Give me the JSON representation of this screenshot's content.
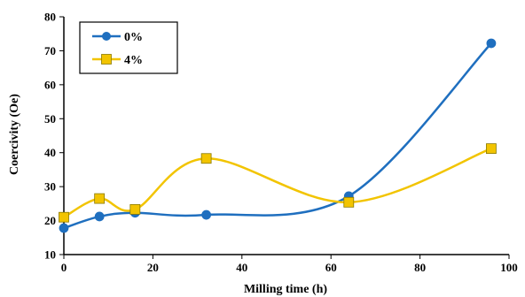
{
  "chart_data": {
    "type": "scatter",
    "xlabel": "Milling time (h)",
    "ylabel": "Coercivity (Oe)",
    "xlim": [
      0,
      100
    ],
    "ylim": [
      10,
      80
    ],
    "x_ticks": [
      0,
      20,
      40,
      60,
      80,
      100
    ],
    "y_ticks": [
      10,
      20,
      30,
      40,
      50,
      60,
      70,
      80
    ],
    "grid": false,
    "smooth_lines": true,
    "legend_position": "top-left",
    "series": [
      {
        "name": "0%",
        "color": "#1f6fbf",
        "marker": "circle",
        "x": [
          0,
          8,
          16,
          32,
          64,
          96
        ],
        "y": [
          17.8,
          21.2,
          22.3,
          21.7,
          27.2,
          72.2
        ]
      },
      {
        "name": "4%",
        "color": "#f2c400",
        "marker": "square",
        "x": [
          0,
          8,
          16,
          32,
          64,
          96
        ],
        "y": [
          21.0,
          26.5,
          23.3,
          38.3,
          25.4,
          41.2
        ]
      }
    ]
  }
}
